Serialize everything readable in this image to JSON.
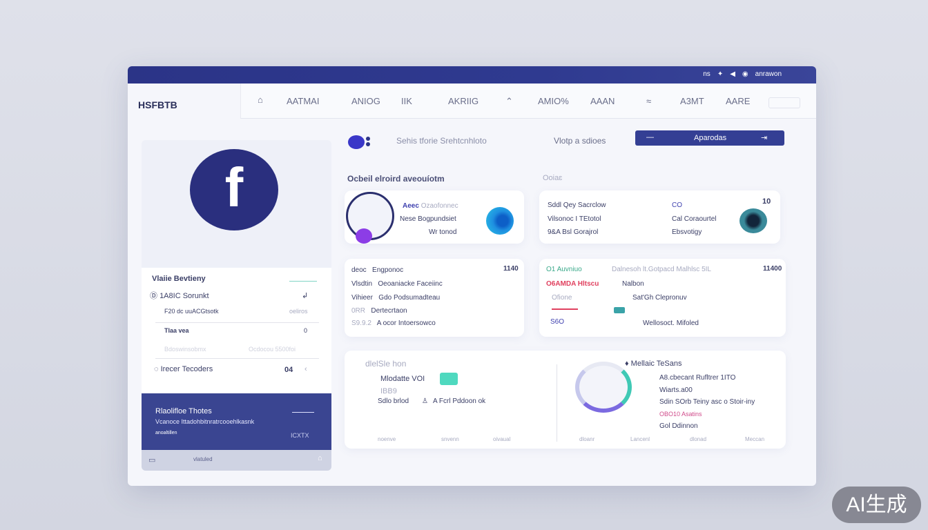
{
  "topbar": {
    "right_text": "ns",
    "user": "anrawon"
  },
  "header": {
    "logo": "HSFBTB",
    "nav": [
      "AATMAI",
      "ANIOG",
      "IIK",
      "AKRIIG",
      "AMIO%",
      "AAAN",
      "A3MT",
      "AARE"
    ]
  },
  "left_panel": {
    "avatar_letter": "f",
    "section_title": "Vlaiie Bevtieny",
    "rows": [
      {
        "label": "1A8IC Sorunkt",
        "value": "↲"
      },
      {
        "label": "F20 dc  uuACGtsotk",
        "value": "oeliros"
      },
      {
        "label": "Tlaa vea",
        "value": "0"
      },
      {
        "label": "Bdoswinsobmx",
        "value": "Ocdocou 5500foi"
      },
      {
        "label": "Irecer Tecoders",
        "value": "04"
      }
    ],
    "promo": {
      "title": "Rlaolifloe Thotes",
      "text": "Vcanoce Ittadohbitnratrcooehlkasnk",
      "tag": "anoaltillen",
      "code": "ICXTX"
    },
    "footer": "vlatuled"
  },
  "toolbar": {
    "text1": "Sehis tforie Srehtcnhloto",
    "text2": "Vlotp a sdioes",
    "button": "Aparodas"
  },
  "section": {
    "title": "Ocbeil elroird aveouíotm",
    "title2": "Ooiaɛ"
  },
  "card1": {
    "l1a": "Aeec",
    "l1b": "Ozaofonnec",
    "l2a": "Nese",
    "l2b": "Bogpundsiet",
    "l3": "Wr tonod"
  },
  "card2": {
    "rows": [
      "Sddl Qey  Sacrclow",
      "Vilsonoc  I TEtotol",
      "9&A  Bsl Gorajrol"
    ],
    "right": [
      "CO",
      "Cal Coraourtel",
      "Ebsvotigy"
    ],
    "badge": "10"
  },
  "card3": {
    "value": "1140",
    "rows": [
      [
        "deoc",
        "Engponoc"
      ],
      [
        "Vlsdtin",
        "Oeoaniacke Faceiinc"
      ],
      [
        "Vihieer",
        "Gdo Podsumadteau"
      ],
      [
        "0RR",
        "Dertecrtaon"
      ],
      [
        "S9.9.2",
        "A ocor Intoersowco"
      ]
    ]
  },
  "card4": {
    "value": "11400",
    "left": [
      "O1 Auvniuo",
      "O6AMDA Hltscu",
      "Ofione",
      "",
      "S6O"
    ],
    "right": [
      "Dalnesoh lt.Gotpacd Malhlsc 5IL",
      "Nalbon",
      "Sat'Gh Clepronuv",
      "",
      "Wellosoct. Mifoled"
    ],
    "red": "#e0405e"
  },
  "card5": {
    "title": "dlelSle hon",
    "r1": "Mlodatte VOI",
    "r2": "IBB9",
    "r3a": "Sdlo brlod",
    "r3b": "A Fcrl Pddoon ok",
    "legend_title": "Mellaic TeSans",
    "legend": [
      "A8.cbecant Rufltrer 1ITO",
      "Wiarts.a00",
      "Sdin SOrb Teiny asc o Stoir-iny",
      "OBO10 Asatins",
      "Gol Ddinnon"
    ],
    "axis": [
      "noenve",
      "snvenn",
      "oivaual",
      "dloanr",
      "Lancenl",
      "dlonad",
      "Meccan"
    ]
  },
  "colors": {
    "navy": "#2b3487",
    "accent": "#3a4591",
    "teal": "#44c8b0",
    "purple": "#8c3de6",
    "blue": "#1e8fe0"
  },
  "watermark": "AI生成"
}
